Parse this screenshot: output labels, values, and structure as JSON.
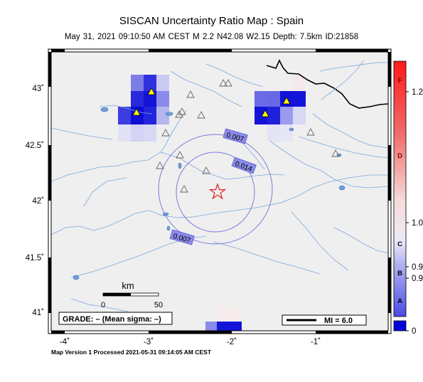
{
  "header": {
    "title": "SISCAN Uncertainty Ratio Map : Spain",
    "subtitle": "May 31, 2021 09:10:50 AM CEST   M 2.2   N42.08 W2.15   Depth: 7.5km   ID:21858"
  },
  "footer": {
    "text": "Map Version 1 Processed 2021-05-31 09:14:05 AM CEST"
  },
  "map": {
    "y_ticks": [
      {
        "label": "43˚",
        "lat": 43.0
      },
      {
        "label": "42.5˚",
        "lat": 42.5
      },
      {
        "label": "42˚",
        "lat": 42.0
      },
      {
        "label": "41.5˚",
        "lat": 41.5
      },
      {
        "label": "41˚",
        "lat": 41.0
      }
    ],
    "x_ticks": [
      {
        "label": "-4˚",
        "lon": -4
      },
      {
        "label": "-3˚",
        "lon": -3
      },
      {
        "label": "-2˚",
        "lon": -2
      },
      {
        "label": "-1˚",
        "lon": -1
      }
    ],
    "epicenter": {
      "lat": 42.08,
      "lon": -2.15
    },
    "contour_labels": [
      "0.007",
      "0.014",
      "0.007"
    ],
    "scale_bar": {
      "title": "km",
      "ticks": [
        "0",
        "50"
      ]
    },
    "grade_box": "GRADE: – (Mean sigma: –)",
    "mi_legend": "MI = 6.0",
    "colors": {
      "background": "#efefef",
      "rivers": "#7aa9dd",
      "lakes": "#6f9fd8",
      "contour": "#7a7ae0",
      "epicenter": "#e02020",
      "station_triangle": "#ffff00"
    }
  },
  "colorbar": {
    "tick_labels": [
      "1.2",
      "1.0",
      "0.9",
      "0.9",
      "0"
    ],
    "letters": [
      "F",
      "D",
      "C",
      "B",
      "A"
    ]
  }
}
